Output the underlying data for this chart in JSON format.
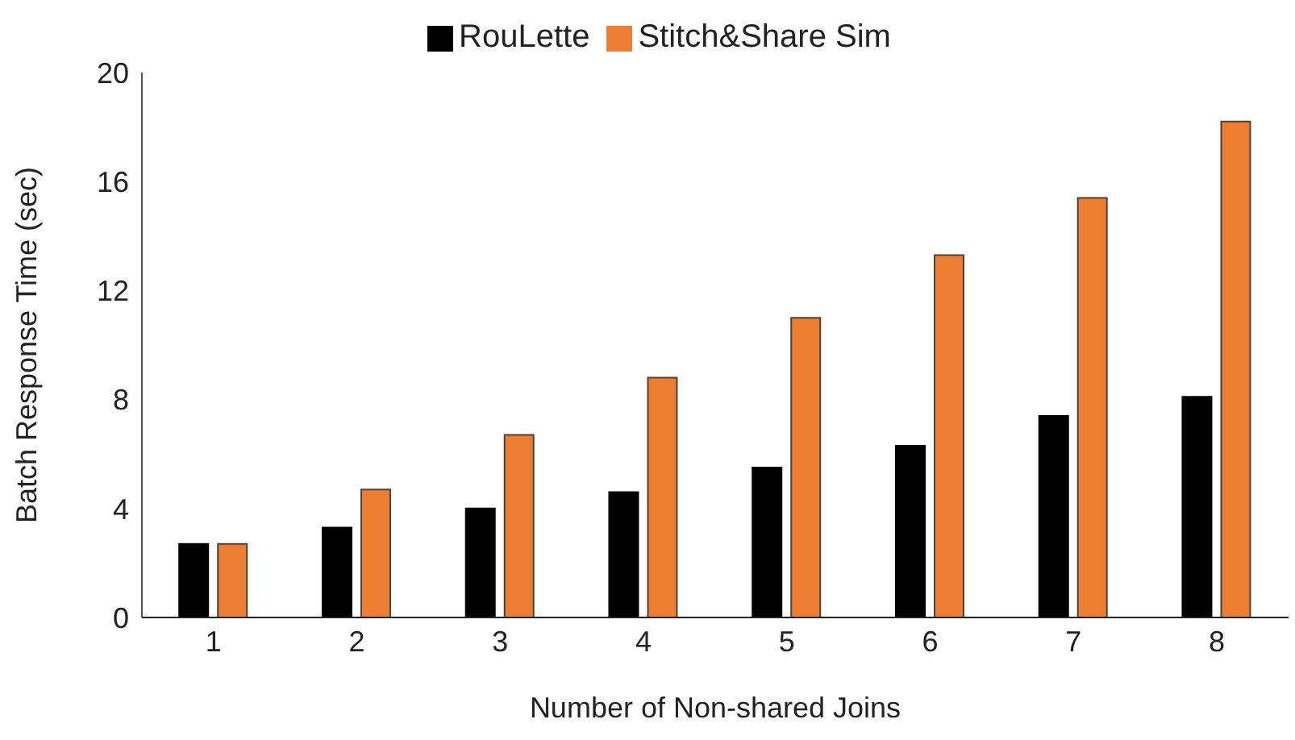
{
  "chart_data": {
    "type": "bar",
    "xlabel": "Number of Non-shared Joins",
    "ylabel": "Batch Response Time (sec)",
    "categories": [
      "1",
      "2",
      "3",
      "4",
      "5",
      "6",
      "7",
      "8"
    ],
    "series": [
      {
        "name": "RouLette",
        "color": "#000000",
        "values": [
          2.7,
          3.3,
          4.0,
          4.6,
          5.5,
          6.3,
          7.4,
          8.1
        ]
      },
      {
        "name": "Stitch&Share Sim",
        "color": "#ed7d31",
        "values": [
          2.7,
          4.7,
          6.7,
          8.8,
          11.0,
          13.3,
          15.4,
          18.2
        ]
      }
    ],
    "ylim": [
      0,
      20
    ],
    "yticks": [
      0,
      4,
      8,
      12,
      16,
      20
    ],
    "grid": false,
    "legend": "top"
  }
}
